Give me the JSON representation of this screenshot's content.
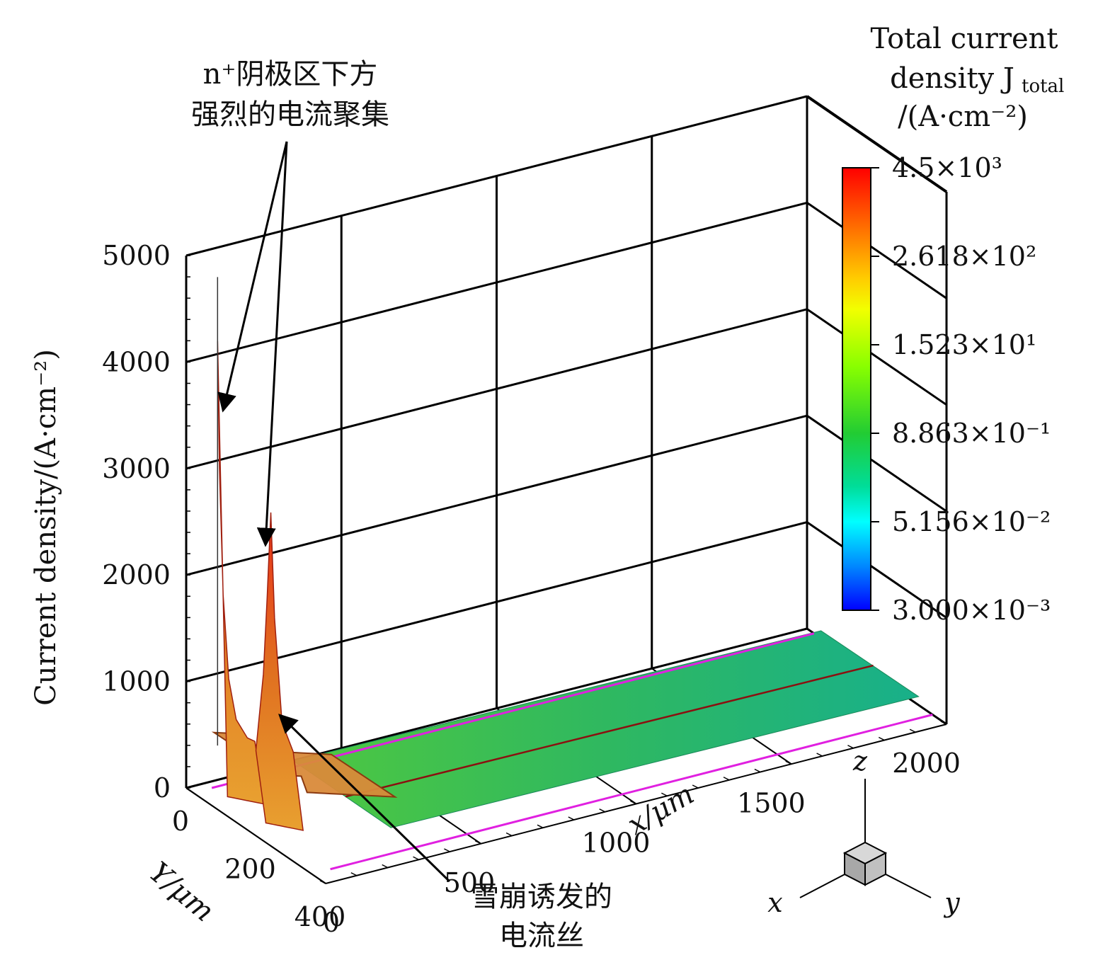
{
  "chart_data": {
    "type": "surface3d",
    "z_axis": {
      "label": "Current density/(A·cm⁻²)",
      "ticks": [
        "0",
        "1000",
        "2000",
        "3000",
        "4000",
        "5000"
      ],
      "range": [
        0,
        5000
      ]
    },
    "x_axis": {
      "label": "x/μm",
      "ticks": [
        "0",
        "500",
        "1000",
        "1500",
        "2000"
      ],
      "range": [
        0,
        2000
      ]
    },
    "y_axis": {
      "label": "Y/μm",
      "ticks": [
        "0",
        "200",
        "400"
      ],
      "range": [
        0,
        400
      ]
    },
    "colorbar": {
      "title_lines": [
        "Total current",
        "density J",
        "/(A·cm⁻²)"
      ],
      "title_subscript": "total",
      "ticks": [
        "4.5×10³",
        "2.618×10²",
        "1.523×10¹",
        "8.863×10⁻¹",
        "5.156×10⁻²",
        "3.000×10⁻³"
      ],
      "scale": "log",
      "colors": [
        "#ff0000",
        "#ff6a00",
        "#ffd000",
        "#9aff00",
        "#22cc22",
        "#00ffff",
        "#0000ff"
      ]
    },
    "series": [
      {
        "values_x": [
          0,
          10,
          30,
          60,
          100,
          160,
          200,
          300,
          500,
          1000,
          1500,
          1700,
          2000
        ],
        "values_z": [
          4400,
          3200,
          2000,
          1200,
          800,
          600,
          550,
          450,
          250,
          120,
          100,
          90,
          80
        ]
      },
      {
        "values_x": [
          0,
          40,
          60,
          80,
          100,
          140,
          200,
          300,
          500,
          1000,
          2000
        ],
        "values_z": [
          800,
          1500,
          2200,
          3000,
          2000,
          1000,
          700,
          400,
          200,
          100,
          80
        ]
      }
    ],
    "annotations": [
      {
        "lines": [
          "n⁺阴极区下方",
          "强烈的电流聚集"
        ]
      },
      {
        "lines": [
          "雪崩诱发的",
          "电流丝"
        ]
      }
    ],
    "orientation_triad": {
      "labels": [
        "z",
        "x",
        "y"
      ]
    }
  }
}
